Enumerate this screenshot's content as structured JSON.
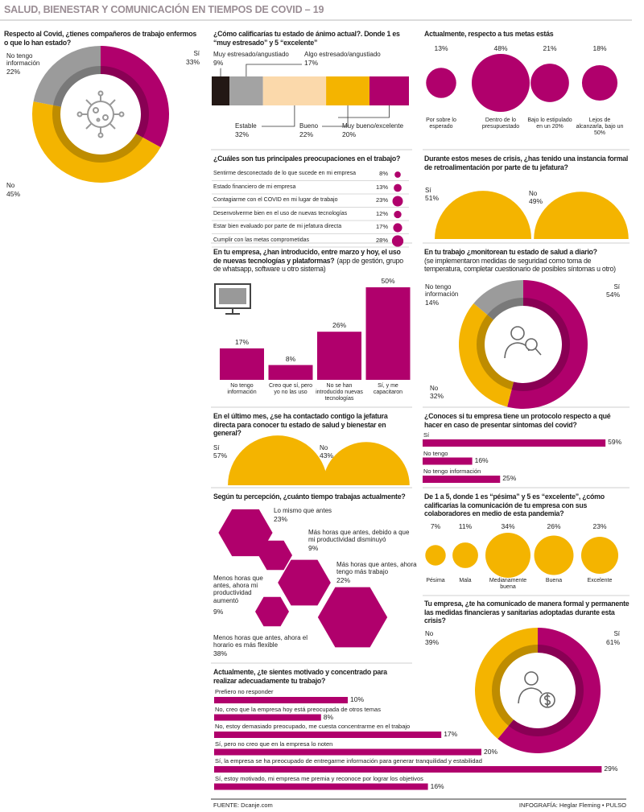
{
  "header": {
    "title": "SALUD, BIENESTAR Y COMUNICACIÓN EN TIEMPOS DE COVID – 19"
  },
  "footer": {
    "source": "FUENTE: Dcanje.com",
    "credit": "INFOGRAFÍA: Heglar Fleming • PULSO"
  },
  "chart_data": [
    {
      "type": "donut",
      "title": "Respecto al Covid, ¿tienes compañeros de trabajo enfermos o que lo han estado?",
      "categories": [
        "Sí",
        "No",
        "No tengo información"
      ],
      "values": [
        33,
        45,
        22
      ],
      "value_labels": [
        "33%",
        "45%",
        "22%"
      ],
      "colors": [
        "#b0006c",
        "#f4b400",
        "#9b9b9b"
      ]
    },
    {
      "type": "stacked-bar",
      "title": "¿Cómo calificarías tu estado de ánimo actual?. Donde 1 es “muy estresado” y 5 “excelente”",
      "categories": [
        "Muy estresado/angustiado",
        "Algo estresado/angustiado",
        "Estable",
        "Bueno",
        "Muy bueno/excelente"
      ],
      "values": [
        9,
        17,
        32,
        22,
        20
      ],
      "value_labels": [
        "9%",
        "17%",
        "32%",
        "22%",
        "20%"
      ],
      "colors": [
        "#231815",
        "#a3a3a3",
        "#fbd9ab",
        "#f4b400",
        "#b0006c"
      ]
    },
    {
      "type": "bubble",
      "title": "Actualmente, respecto a tus metas estás",
      "categories": [
        "Por sobre lo esperado",
        "Dentro de lo presupuestado",
        "Bajo lo estipulado en un 20%",
        "Lejos de alcanzarla, bajo un 50%"
      ],
      "values": [
        13,
        48,
        21,
        18
      ],
      "value_labels": [
        "13%",
        "48%",
        "21%",
        "18%"
      ],
      "color": "#b0006c"
    },
    {
      "type": "dot-list",
      "title": "¿Cuáles son tus principales preocupaciones en el trabajo?",
      "categories": [
        "Sentirme desconectado de lo que sucede en mi empresa",
        "Estado financiero de mi empresa",
        "Contagiarme con el COVID en mi lugar de trabajo",
        "Desenvolverme bien en el uso de nuevas tecnologías",
        "Estar bien evaluado por parte de mi jefatura directa",
        "Cumplir con las metas comprometidas"
      ],
      "values": [
        8,
        13,
        23,
        12,
        17,
        28
      ],
      "value_labels": [
        "8%",
        "13%",
        "23%",
        "12%",
        "17%",
        "28%"
      ],
      "color": "#b0006c"
    },
    {
      "type": "half-circle",
      "title": "Durante estos meses de crisis, ¿has tenido una instancia formal de retroalimentación por parte de tu jefatura?",
      "categories": [
        "Sí",
        "No"
      ],
      "values": [
        51,
        49
      ],
      "value_labels": [
        "51%",
        "49%"
      ],
      "color": "#f4b400"
    },
    {
      "type": "bar",
      "title": "En tu empresa, ¿han introducido, entre marzo y hoy, el uso de nuevas tecnologías y plataformas?",
      "subtitle": "(app de gestión, grupo de whatsapp, software u otro sistema)",
      "categories": [
        "No tengo información",
        "Creo que sí, pero yo no las uso",
        "No se han introducido nuevas tecnologías",
        "Sí, y me capacitaron"
      ],
      "values": [
        17,
        8,
        26,
        50
      ],
      "value_labels": [
        "17%",
        "8%",
        "26%",
        "50%"
      ],
      "color": "#b0006c"
    },
    {
      "type": "donut",
      "title": "En tu trabajo ¿monitorean tu estado de salud a diario?",
      "subtitle": "(se implementaron medidas de seguridad como toma de temperatura, completar cuestionario de posibles síntomas u otro)",
      "categories": [
        "Sí",
        "No",
        "No tengo información"
      ],
      "values": [
        54,
        32,
        14
      ],
      "value_labels": [
        "54%",
        "32%",
        "14%"
      ],
      "colors": [
        "#b0006c",
        "#f4b400",
        "#9b9b9b"
      ]
    },
    {
      "type": "half-circle",
      "title": "En el último mes, ¿se ha contactado contigo la jefatura directa para conocer tu estado de salud y bienestar en general?",
      "categories": [
        "Sí",
        "No"
      ],
      "values": [
        57,
        43
      ],
      "value_labels": [
        "57%",
        "43%"
      ],
      "color": "#f4b400"
    },
    {
      "type": "hbar",
      "title": "¿Conoces si tu empresa tiene un protocolo respecto a qué hacer en caso de presentar síntomas del covid?",
      "categories": [
        "Sí",
        "No tengo",
        "No tengo información"
      ],
      "values": [
        59,
        16,
        25
      ],
      "value_labels": [
        "59%",
        "16%",
        "25%"
      ],
      "color": "#b0006c"
    },
    {
      "type": "hexagon",
      "title": "Según tu percepción, ¿cuánto tiempo trabajas actualmente?",
      "categories": [
        "Lo mismo que antes",
        "Más horas que antes, debido a que mi productividad disminuyó",
        "Más horas que antes, ahora tengo más trabajo",
        "Menos horas que antes, ahora mi productividad aumentó",
        "Menos horas que antes, ahora el horario es más flexible"
      ],
      "values": [
        23,
        9,
        22,
        9,
        38
      ],
      "value_labels": [
        "23%",
        "9%",
        "22%",
        "9%",
        "38%"
      ],
      "color": "#b0006c"
    },
    {
      "type": "bubble",
      "title": "De 1 a 5, donde 1 es “pésima” y 5 es “excelente”, ¿cómo calificarías la comunicación de tu empresa con sus colaboradores en medio de esta pandemia?",
      "categories": [
        "Pésima",
        "Mala",
        "Medianamente buena",
        "Buena",
        "Excelente"
      ],
      "values": [
        7,
        11,
        34,
        26,
        23
      ],
      "value_labels": [
        "7%",
        "11%",
        "34%",
        "26%",
        "23%"
      ],
      "color": "#f4b400"
    },
    {
      "type": "donut",
      "title": "Tu empresa, ¿te ha comunicado de manera formal y permanente las medidas financieras y sanitarias adoptadas durante esta crisis?",
      "categories": [
        "Sí",
        "No"
      ],
      "values": [
        61,
        39
      ],
      "value_labels": [
        "61%",
        "39%"
      ],
      "colors": [
        "#b0006c",
        "#f4b400"
      ]
    },
    {
      "type": "hbar",
      "title": "Actualmente, ¿te sientes motivado y concentrado para realizar adecuadamente tu trabajo?",
      "categories": [
        "Prefiero no responder",
        "No, creo que la empresa hoy está preocupada de otros temas",
        "No, estoy demasiado preocupado, me cuesta concentrarme en el trabajo",
        "Sí, pero no creo que en la empresa lo noten",
        "Sí, la empresa se ha preocupado de entregarme información para generar tranquilidad y estabilidad",
        "Sí, estoy motivado, mi empresa me premia y reconoce por lograr los objetivos"
      ],
      "values": [
        10,
        8,
        17,
        20,
        29,
        16
      ],
      "value_labels": [
        "10%",
        "8%",
        "17%",
        "20%",
        "29%",
        "16%"
      ],
      "color": "#b0006c"
    }
  ]
}
